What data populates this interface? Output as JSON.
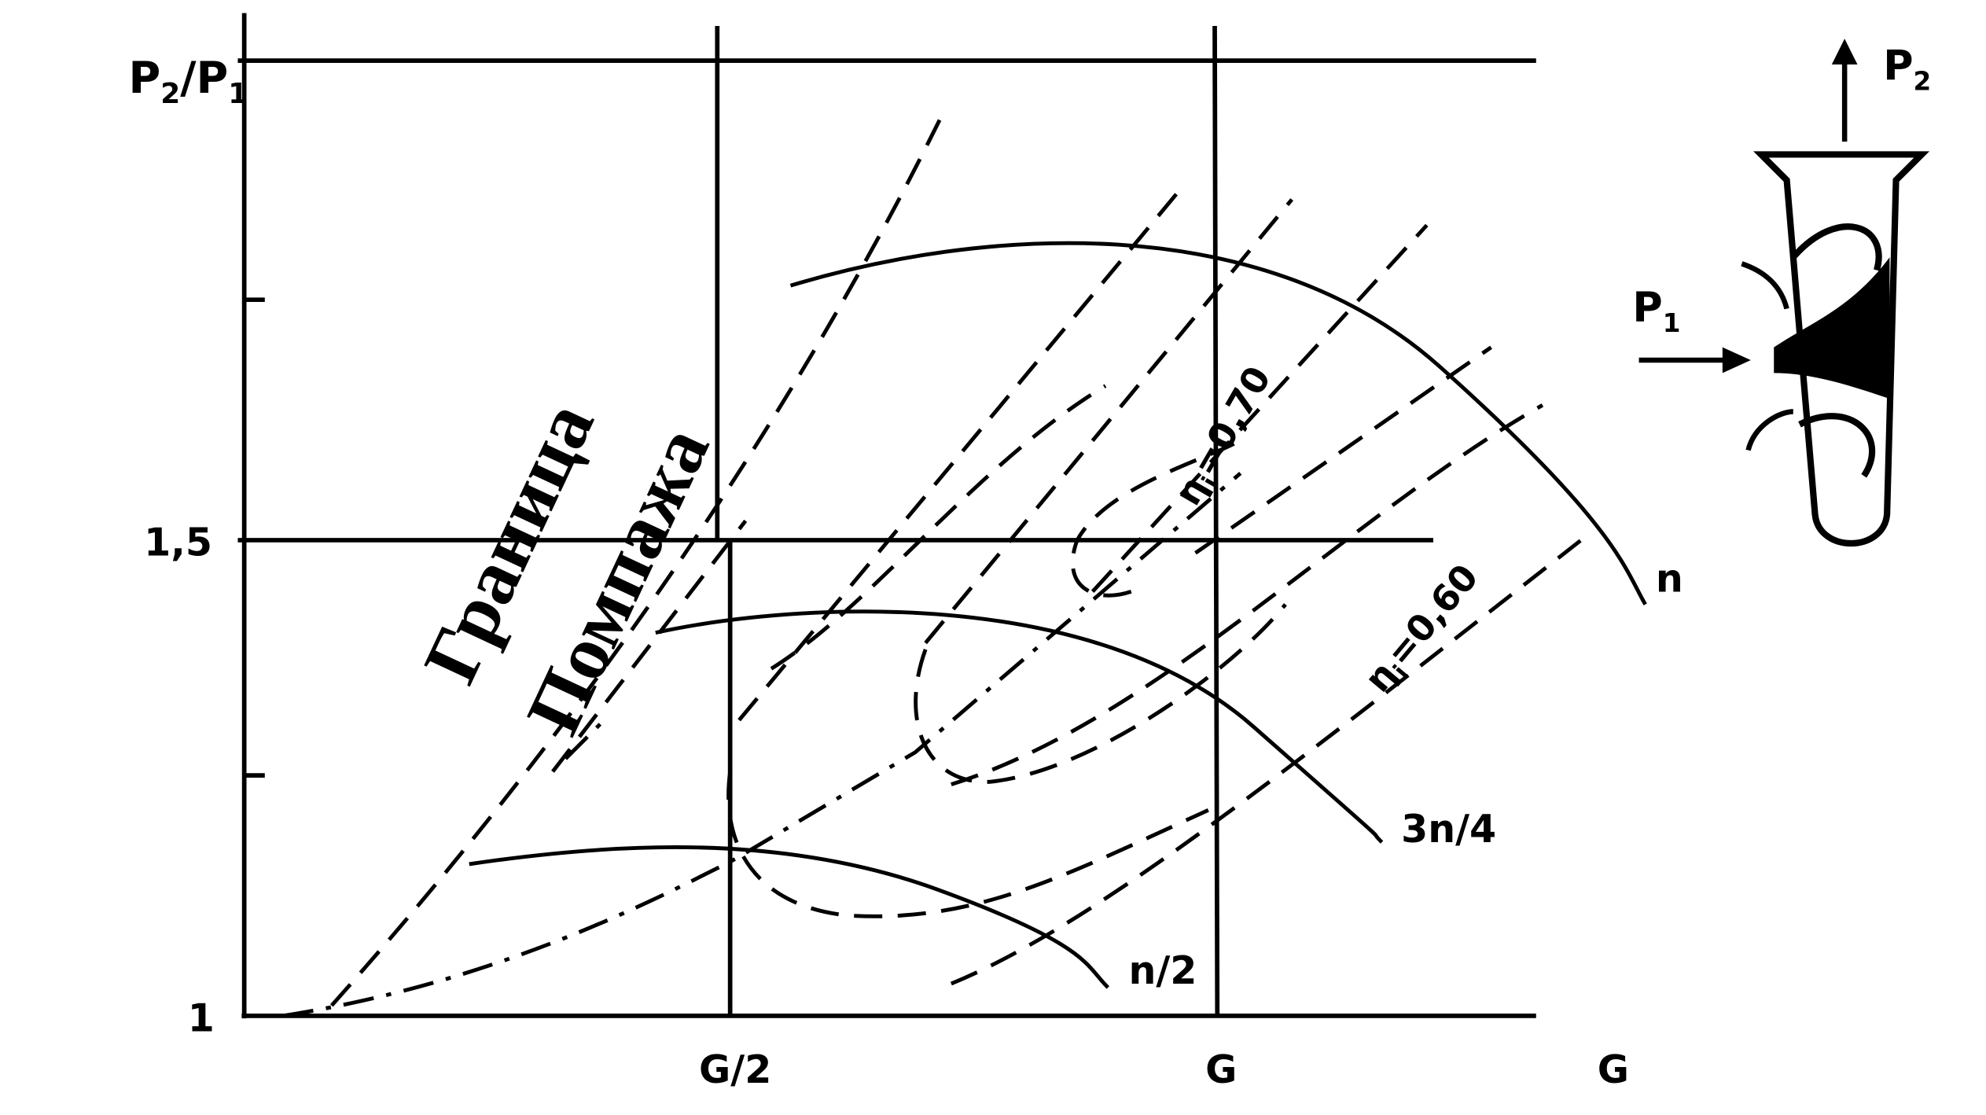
{
  "y_axis": {
    "label": {
      "p": "P",
      "sub2": "2",
      "slash_p": "/P",
      "sub1": "1"
    },
    "ticks": [
      "1,5",
      "1"
    ]
  },
  "x_axis": {
    "ticks": [
      "G/2",
      "G",
      "G"
    ]
  },
  "curves": {
    "n": "n",
    "three_quarter_n": "3n/4",
    "half_n": "n/2"
  },
  "efficiency": [
    {
      "eta": "η",
      "sub": "i",
      "rest": "=0,70"
    },
    {
      "eta": "η",
      "sub": "i",
      "rest": "=0,60"
    }
  ],
  "surge_label": [
    "Граница",
    "Помпажа"
  ],
  "inset": {
    "inlet": {
      "p": "P",
      "sub": "1"
    },
    "outlet": {
      "p": "P",
      "sub": "2"
    }
  }
}
